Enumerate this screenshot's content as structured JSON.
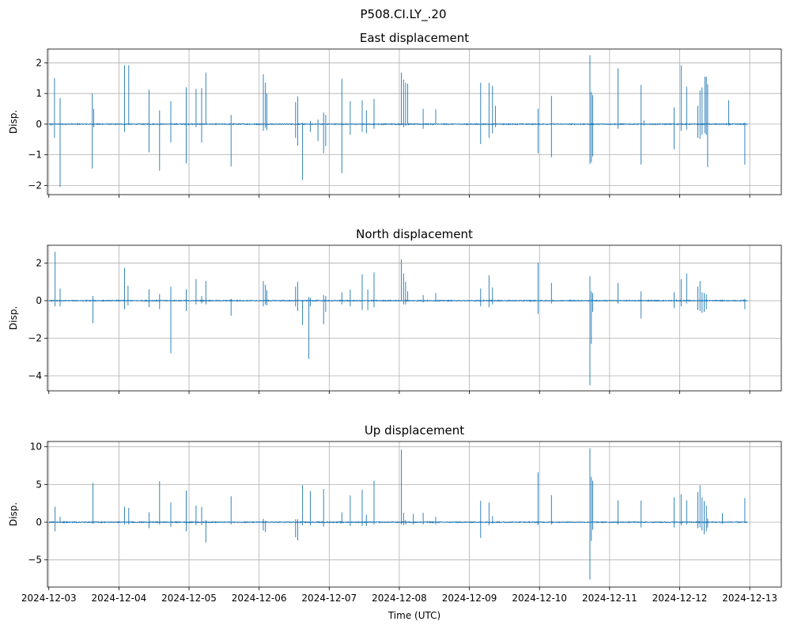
{
  "chart_data": {
    "suptitle": "P508.CI.LY_.20",
    "xlabel": "Time (UTC)",
    "x_ticks": [
      "2024-12-03",
      "2024-12-04",
      "2024-12-05",
      "2024-12-06",
      "2024-12-07",
      "2024-12-08",
      "2024-12-09",
      "2024-12-10",
      "2024-12-11",
      "2024-12-12",
      "2024-12-13"
    ],
    "x_range_days": [
      -0.02,
      10.45
    ],
    "panels": [
      {
        "type": "line",
        "title": "East displacement",
        "ylabel": "Disp.",
        "ylim": [
          -2.3,
          2.45
        ],
        "yticks": [
          -2,
          -1,
          0,
          1,
          2
        ],
        "ytick_labels": [
          "−2",
          "−1",
          "0",
          "1",
          "2"
        ],
        "spikes": [
          [
            0.03,
            0.0,
            -0.05
          ],
          [
            0.08,
            1.5,
            -0.45
          ],
          [
            0.16,
            0.85,
            -2.05
          ],
          [
            0.62,
            1.0,
            -1.45
          ],
          [
            0.64,
            0.5,
            -0.1
          ],
          [
            1.08,
            1.92,
            -0.25
          ],
          [
            1.14,
            1.92,
            0.0
          ],
          [
            1.43,
            1.12,
            -0.92
          ],
          [
            1.58,
            0.45,
            -1.52
          ],
          [
            1.74,
            0.75,
            -0.6
          ],
          [
            1.96,
            1.2,
            -1.28
          ],
          [
            2.1,
            1.15,
            -0.1
          ],
          [
            2.18,
            1.18,
            -0.6
          ],
          [
            2.24,
            1.68,
            0.0
          ],
          [
            2.6,
            0.3,
            -1.38
          ],
          [
            3.06,
            1.63,
            -0.22
          ],
          [
            3.09,
            1.35,
            -0.12
          ],
          [
            3.11,
            1.0,
            -0.2
          ],
          [
            3.52,
            0.72,
            -0.45
          ],
          [
            3.55,
            0.9,
            -0.7
          ],
          [
            3.62,
            0.05,
            -1.82
          ],
          [
            3.73,
            0.1,
            -0.25
          ],
          [
            3.84,
            0.15,
            -0.55
          ],
          [
            3.92,
            0.38,
            -0.95
          ],
          [
            3.95,
            0.3,
            -0.72
          ],
          [
            4.18,
            1.48,
            -1.6
          ],
          [
            4.3,
            0.75,
            -0.35
          ],
          [
            4.47,
            0.78,
            -0.25
          ],
          [
            4.53,
            0.45,
            -0.3
          ],
          [
            4.64,
            0.82,
            -0.15
          ],
          [
            5.03,
            1.68,
            0.0
          ],
          [
            5.06,
            1.45,
            -0.1
          ],
          [
            5.09,
            1.35,
            -0.05
          ],
          [
            5.12,
            1.32,
            0.0
          ],
          [
            5.34,
            0.5,
            -0.15
          ],
          [
            5.52,
            0.48,
            0.0
          ],
          [
            6.16,
            1.35,
            -0.65
          ],
          [
            6.28,
            1.35,
            -0.45
          ],
          [
            6.33,
            1.25,
            -0.3
          ],
          [
            6.37,
            0.6,
            -0.1
          ],
          [
            6.98,
            0.5,
            -0.95
          ],
          [
            7.17,
            0.92,
            -1.08
          ],
          [
            7.72,
            2.25,
            -1.3
          ],
          [
            7.74,
            1.05,
            -1.25
          ],
          [
            7.76,
            0.95,
            -1.05
          ],
          [
            8.12,
            1.82,
            -0.15
          ],
          [
            8.45,
            1.28,
            -1.32
          ],
          [
            8.49,
            0.12,
            -0.05
          ],
          [
            8.92,
            0.55,
            -0.82
          ],
          [
            9.02,
            1.92,
            -0.22
          ],
          [
            9.1,
            1.22,
            -0.18
          ],
          [
            9.26,
            0.6,
            -0.45
          ],
          [
            9.29,
            1.1,
            -0.48
          ],
          [
            9.32,
            1.2,
            -0.35
          ],
          [
            9.36,
            1.55,
            -0.3
          ],
          [
            9.38,
            1.55,
            -0.35
          ],
          [
            9.4,
            1.3,
            -1.4
          ],
          [
            9.7,
            0.78,
            -0.05
          ],
          [
            9.93,
            0.05,
            -1.32
          ]
        ]
      },
      {
        "type": "line",
        "title": "North displacement",
        "ylabel": "Disp.",
        "ylim": [
          -4.8,
          2.95
        ],
        "yticks": [
          -4,
          -2,
          0,
          2
        ],
        "ytick_labels": [
          "−4",
          "−2",
          "0",
          "2"
        ],
        "spikes": [
          [
            0.03,
            0.05,
            -0.05
          ],
          [
            0.09,
            2.6,
            -0.3
          ],
          [
            0.16,
            0.65,
            -0.3
          ],
          [
            0.63,
            0.25,
            -1.2
          ],
          [
            1.08,
            1.75,
            -0.45
          ],
          [
            1.13,
            0.8,
            -0.25
          ],
          [
            1.43,
            0.6,
            -0.35
          ],
          [
            1.58,
            0.35,
            -0.45
          ],
          [
            1.74,
            0.75,
            -2.8
          ],
          [
            1.96,
            0.6,
            -0.55
          ],
          [
            2.1,
            1.15,
            -0.2
          ],
          [
            2.18,
            0.25,
            -0.15
          ],
          [
            2.24,
            1.05,
            -0.2
          ],
          [
            2.6,
            0.1,
            -0.8
          ],
          [
            3.06,
            1.05,
            -0.3
          ],
          [
            3.09,
            0.85,
            -0.2
          ],
          [
            3.11,
            0.55,
            -0.25
          ],
          [
            3.52,
            0.75,
            -0.3
          ],
          [
            3.55,
            1.0,
            -0.55
          ],
          [
            3.62,
            0.05,
            -1.3
          ],
          [
            3.71,
            0.2,
            -3.1
          ],
          [
            3.73,
            0.15,
            -0.3
          ],
          [
            3.92,
            0.3,
            -1.25
          ],
          [
            3.95,
            0.25,
            -0.6
          ],
          [
            4.18,
            0.45,
            -0.2
          ],
          [
            4.3,
            0.6,
            -0.3
          ],
          [
            4.47,
            1.4,
            -0.5
          ],
          [
            4.55,
            0.6,
            -0.5
          ],
          [
            4.64,
            1.5,
            -0.35
          ],
          [
            5.03,
            2.2,
            0.0
          ],
          [
            5.06,
            1.45,
            -0.2
          ],
          [
            5.09,
            1.0,
            -0.2
          ],
          [
            5.12,
            0.5,
            0.0
          ],
          [
            5.34,
            0.3,
            -0.1
          ],
          [
            5.52,
            0.4,
            -0.05
          ],
          [
            6.16,
            0.65,
            -0.3
          ],
          [
            6.28,
            1.35,
            -0.35
          ],
          [
            6.33,
            0.7,
            -0.2
          ],
          [
            6.98,
            2.02,
            -0.7
          ],
          [
            7.17,
            0.95,
            -0.15
          ],
          [
            7.72,
            1.3,
            -4.5
          ],
          [
            7.74,
            0.5,
            -2.3
          ],
          [
            7.76,
            0.4,
            -0.6
          ],
          [
            8.12,
            0.95,
            -0.15
          ],
          [
            8.45,
            0.5,
            -0.95
          ],
          [
            8.92,
            0.45,
            -0.4
          ],
          [
            9.02,
            1.15,
            -0.3
          ],
          [
            9.1,
            1.45,
            -0.15
          ],
          [
            9.26,
            0.75,
            -0.5
          ],
          [
            9.29,
            1.05,
            -0.55
          ],
          [
            9.32,
            0.45,
            -0.65
          ],
          [
            9.35,
            0.4,
            -0.6
          ],
          [
            9.38,
            0.35,
            -0.45
          ],
          [
            9.93,
            0.1,
            -0.45
          ]
        ]
      },
      {
        "type": "line",
        "title": "Up displacement",
        "ylabel": "Disp.",
        "ylim": [
          -8.6,
          10.7
        ],
        "yticks": [
          -5,
          0,
          5,
          10
        ],
        "ytick_labels": [
          "−5",
          "0",
          "5",
          "10"
        ],
        "spikes": [
          [
            0.03,
            0.1,
            -0.1
          ],
          [
            0.09,
            2.05,
            -1.2
          ],
          [
            0.16,
            0.7,
            -0.1
          ],
          [
            0.63,
            5.2,
            -0.2
          ],
          [
            1.08,
            2.05,
            -0.3
          ],
          [
            1.14,
            1.9,
            -0.3
          ],
          [
            1.43,
            1.3,
            -0.8
          ],
          [
            1.58,
            5.45,
            -0.3
          ],
          [
            1.74,
            2.6,
            -0.6
          ],
          [
            1.96,
            4.2,
            -1.2
          ],
          [
            2.1,
            2.2,
            -0.4
          ],
          [
            2.18,
            2.0,
            -0.4
          ],
          [
            2.24,
            0.3,
            -2.7
          ],
          [
            2.6,
            3.45,
            -0.3
          ],
          [
            3.06,
            0.45,
            -1.1
          ],
          [
            3.09,
            0.2,
            -1.3
          ],
          [
            3.52,
            0.4,
            -2.0
          ],
          [
            3.55,
            0.4,
            -2.4
          ],
          [
            3.62,
            4.9,
            -0.4
          ],
          [
            3.73,
            4.1,
            -0.4
          ],
          [
            3.92,
            4.4,
            -0.6
          ],
          [
            4.18,
            1.3,
            -0.2
          ],
          [
            4.3,
            3.55,
            -0.5
          ],
          [
            4.47,
            4.3,
            -0.5
          ],
          [
            4.53,
            1.0,
            -0.5
          ],
          [
            4.64,
            5.5,
            -0.3
          ],
          [
            5.03,
            9.6,
            -0.3
          ],
          [
            5.06,
            1.25,
            -0.4
          ],
          [
            5.09,
            0.3,
            -0.3
          ],
          [
            5.2,
            1.1,
            -0.3
          ],
          [
            5.34,
            1.25,
            -0.3
          ],
          [
            5.52,
            0.7,
            -0.3
          ],
          [
            6.16,
            2.85,
            -2.1
          ],
          [
            6.28,
            2.6,
            -0.4
          ],
          [
            6.33,
            0.8,
            -0.2
          ],
          [
            6.98,
            6.6,
            -0.4
          ],
          [
            7.17,
            3.6,
            -0.3
          ],
          [
            7.72,
            9.8,
            -7.6
          ],
          [
            7.74,
            6.0,
            -2.5
          ],
          [
            7.76,
            5.5,
            -1.0
          ],
          [
            8.12,
            2.9,
            -0.3
          ],
          [
            8.45,
            2.85,
            -0.7
          ],
          [
            8.92,
            3.3,
            -0.7
          ],
          [
            9.02,
            3.7,
            -0.4
          ],
          [
            9.1,
            2.9,
            -0.3
          ],
          [
            9.26,
            4.0,
            -0.8
          ],
          [
            9.29,
            4.9,
            -0.7
          ],
          [
            9.32,
            3.3,
            -1.1
          ],
          [
            9.35,
            2.8,
            -1.6
          ],
          [
            9.38,
            2.2,
            -1.2
          ],
          [
            9.4,
            0.5,
            -0.7
          ],
          [
            9.61,
            1.2,
            -0.2
          ],
          [
            9.93,
            3.2,
            -0.1
          ]
        ]
      }
    ]
  }
}
